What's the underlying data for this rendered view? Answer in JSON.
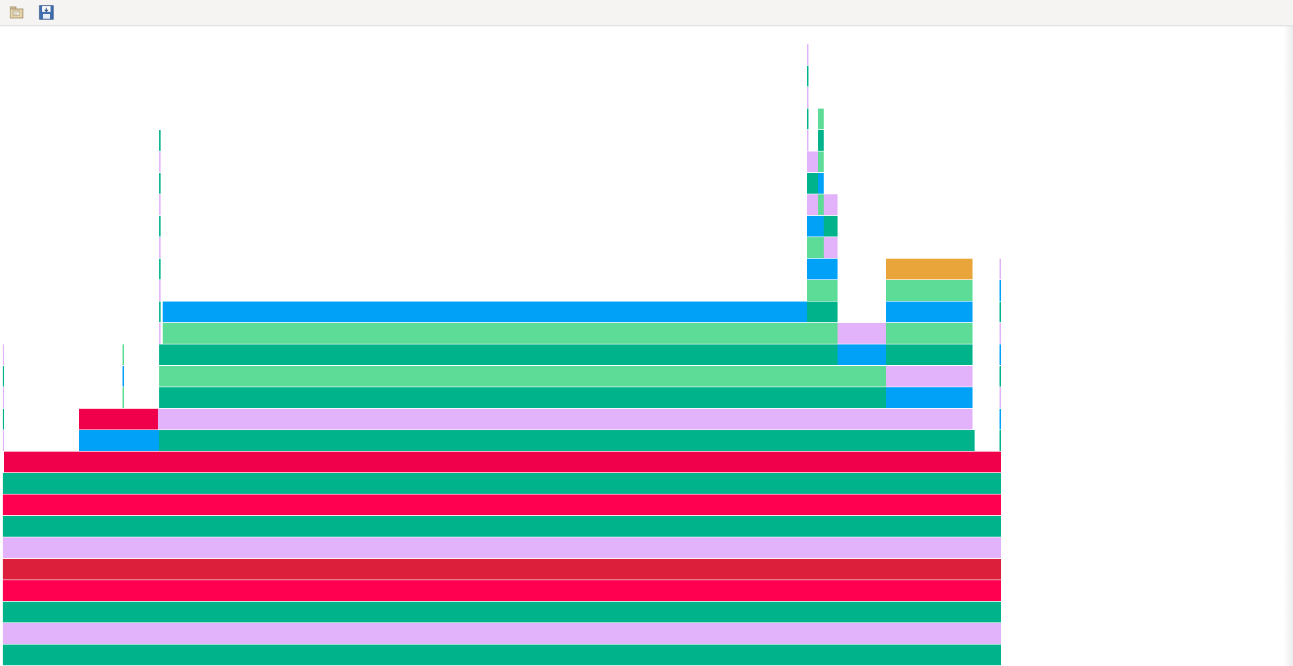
{
  "toolbar": {
    "buttons": [
      {
        "id": "open",
        "icon": "folder-icon"
      },
      {
        "id": "save",
        "icon": "save-icon"
      }
    ]
  },
  "flamegraph": {
    "colors": {
      "teal": "#00b38a",
      "light_green": "#5cdc96",
      "blue": "#00a1f6",
      "lavender": "#e2b3fa",
      "red": "#f0004a",
      "pink_red": "#ff0050",
      "crimson": "#dc1f3b",
      "orange": "#e9a53a"
    },
    "frame_count": 62
  }
}
